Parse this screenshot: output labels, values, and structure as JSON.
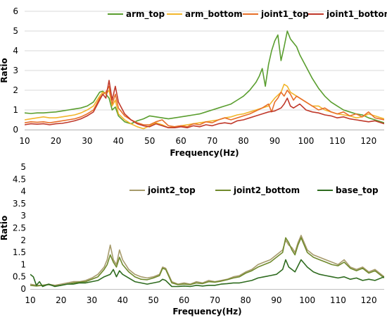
{
  "chart_data": [
    {
      "type": "line",
      "title": "",
      "xlabel": "Frequency(Hz)",
      "ylabel": "Ratio",
      "xlim": [
        10,
        125
      ],
      "ylim": [
        0,
        6
      ],
      "xticks": [
        10,
        20,
        30,
        40,
        50,
        60,
        70,
        80,
        90,
        100,
        110,
        120
      ],
      "yticks": [
        "0",
        "1",
        "2",
        "3",
        "4",
        "5",
        "6"
      ],
      "grid": "horizontal",
      "legend_position": "top",
      "series": [
        {
          "name": "arm_top",
          "color": "#5a9e2f",
          "x": [
            10,
            12,
            14,
            16,
            18,
            20,
            22,
            24,
            26,
            28,
            30,
            32,
            34,
            35,
            36,
            37,
            38,
            39,
            40,
            42,
            44,
            46,
            48,
            50,
            52,
            54,
            56,
            58,
            60,
            62,
            64,
            66,
            68,
            70,
            72,
            74,
            76,
            78,
            80,
            82,
            84,
            85,
            86,
            87,
            88,
            89,
            90,
            91,
            92,
            93,
            94,
            95,
            96,
            97,
            98,
            100,
            102,
            104,
            106,
            108,
            110,
            112,
            114,
            116,
            118,
            120,
            122,
            125
          ],
          "y": [
            0.85,
            0.82,
            0.85,
            0.85,
            0.88,
            0.9,
            0.95,
            1.0,
            1.05,
            1.1,
            1.2,
            1.4,
            1.9,
            1.95,
            1.8,
            1.6,
            1.0,
            1.15,
            0.7,
            0.4,
            0.3,
            0.45,
            0.55,
            0.7,
            0.65,
            0.6,
            0.55,
            0.6,
            0.65,
            0.7,
            0.75,
            0.8,
            0.9,
            1.0,
            1.1,
            1.2,
            1.3,
            1.5,
            1.7,
            2.0,
            2.4,
            2.7,
            3.1,
            2.2,
            3.3,
            4.0,
            4.5,
            4.8,
            3.5,
            4.2,
            5.0,
            4.6,
            4.4,
            4.2,
            3.8,
            3.2,
            2.6,
            2.1,
            1.7,
            1.4,
            1.2,
            1.0,
            0.9,
            0.8,
            0.75,
            0.6,
            0.5,
            0.35
          ]
        },
        {
          "name": "arm_bottom",
          "color": "#f2b62c",
          "x": [
            10,
            12,
            14,
            16,
            18,
            20,
            22,
            24,
            26,
            28,
            30,
            32,
            34,
            35,
            36,
            37,
            38,
            39,
            40,
            42,
            44,
            46,
            48,
            50,
            52,
            54,
            56,
            58,
            60,
            62,
            64,
            66,
            68,
            70,
            72,
            74,
            76,
            78,
            80,
            82,
            84,
            86,
            88,
            90,
            92,
            93,
            94,
            95,
            96,
            98,
            100,
            102,
            104,
            106,
            108,
            110,
            112,
            114,
            116,
            118,
            120,
            122,
            125
          ],
          "y": [
            0.5,
            0.55,
            0.6,
            0.65,
            0.6,
            0.6,
            0.65,
            0.7,
            0.75,
            0.85,
            1.0,
            1.2,
            1.7,
            1.9,
            1.8,
            2.0,
            1.2,
            1.5,
            0.8,
            0.5,
            0.3,
            0.15,
            0.05,
            0.2,
            0.35,
            0.25,
            0.1,
            0.15,
            0.2,
            0.25,
            0.3,
            0.35,
            0.4,
            0.45,
            0.5,
            0.6,
            0.65,
            0.75,
            0.8,
            0.9,
            1.0,
            1.1,
            1.2,
            1.6,
            1.9,
            2.3,
            2.2,
            1.9,
            1.8,
            1.6,
            1.4,
            1.2,
            1.2,
            1.0,
            0.9,
            0.8,
            0.75,
            0.7,
            0.6,
            0.65,
            0.8,
            0.7,
            0.55
          ]
        },
        {
          "name": "joint1_top",
          "color": "#e8702a",
          "x": [
            10,
            12,
            14,
            16,
            18,
            20,
            22,
            24,
            26,
            28,
            30,
            32,
            34,
            35,
            36,
            37,
            38,
            39,
            40,
            42,
            44,
            46,
            48,
            50,
            52,
            54,
            56,
            58,
            60,
            62,
            64,
            66,
            68,
            70,
            72,
            74,
            76,
            78,
            80,
            82,
            84,
            86,
            88,
            89,
            90,
            91,
            92,
            93,
            94,
            95,
            96,
            97,
            98,
            100,
            102,
            104,
            106,
            108,
            110,
            112,
            114,
            116,
            118,
            120,
            122,
            125
          ],
          "y": [
            0.35,
            0.4,
            0.38,
            0.4,
            0.35,
            0.4,
            0.45,
            0.5,
            0.55,
            0.65,
            0.8,
            1.0,
            1.6,
            1.8,
            1.9,
            2.2,
            1.3,
            1.8,
            1.1,
            0.7,
            0.5,
            0.35,
            0.25,
            0.25,
            0.4,
            0.5,
            0.2,
            0.15,
            0.2,
            0.15,
            0.3,
            0.25,
            0.4,
            0.35,
            0.5,
            0.6,
            0.5,
            0.6,
            0.7,
            0.8,
            0.95,
            1.1,
            1.3,
            0.9,
            1.4,
            1.6,
            1.9,
            1.7,
            2.0,
            1.8,
            1.5,
            1.7,
            1.6,
            1.4,
            1.2,
            1.0,
            1.1,
            0.9,
            0.8,
            0.9,
            0.7,
            0.8,
            0.65,
            0.9,
            0.6,
            0.5
          ]
        },
        {
          "name": "joint1_bottom",
          "color": "#c0392b",
          "x": [
            10,
            12,
            14,
            16,
            18,
            20,
            22,
            24,
            26,
            28,
            30,
            32,
            34,
            35,
            36,
            37,
            38,
            39,
            40,
            42,
            44,
            46,
            48,
            50,
            52,
            54,
            56,
            58,
            60,
            62,
            64,
            66,
            68,
            70,
            72,
            74,
            76,
            78,
            80,
            82,
            84,
            86,
            88,
            90,
            92,
            93,
            94,
            95,
            96,
            98,
            100,
            102,
            104,
            106,
            108,
            110,
            112,
            114,
            116,
            118,
            120,
            122,
            125
          ],
          "y": [
            0.25,
            0.3,
            0.28,
            0.3,
            0.25,
            0.3,
            0.32,
            0.38,
            0.45,
            0.55,
            0.7,
            0.9,
            1.5,
            1.8,
            1.6,
            2.5,
            1.5,
            2.2,
            1.4,
            0.8,
            0.5,
            0.3,
            0.2,
            0.15,
            0.3,
            0.2,
            0.1,
            0.1,
            0.15,
            0.1,
            0.2,
            0.15,
            0.25,
            0.2,
            0.3,
            0.35,
            0.3,
            0.45,
            0.5,
            0.6,
            0.7,
            0.8,
            0.9,
            0.95,
            1.1,
            1.3,
            1.6,
            1.2,
            1.1,
            1.3,
            1.0,
            0.9,
            0.85,
            0.75,
            0.7,
            0.6,
            0.65,
            0.55,
            0.5,
            0.45,
            0.4,
            0.45,
            0.3
          ]
        }
      ]
    },
    {
      "type": "line",
      "title": "",
      "xlabel": "Frequency(Hz)",
      "ylabel": "Ratio",
      "xlim": [
        10,
        125
      ],
      "ylim": [
        0,
        5
      ],
      "xticks": [
        10,
        20,
        30,
        40,
        50,
        60,
        70,
        80,
        90,
        100,
        110,
        120
      ],
      "yticks": [
        "0",
        "0.5",
        "1",
        "1.5",
        "2",
        "2.5",
        "3",
        "3.5",
        "4",
        "4.5",
        "5"
      ],
      "grid": "none",
      "legend_position": "upper-middle",
      "series": [
        {
          "name": "joint2_top",
          "color": "#a79b6c",
          "x": [
            10,
            12,
            14,
            16,
            18,
            20,
            22,
            24,
            26,
            28,
            30,
            32,
            34,
            35,
            36,
            37,
            38,
            39,
            40,
            42,
            44,
            46,
            48,
            50,
            52,
            53,
            54,
            56,
            58,
            60,
            62,
            64,
            66,
            68,
            70,
            72,
            74,
            76,
            78,
            80,
            82,
            84,
            86,
            88,
            90,
            92,
            93,
            94,
            95,
            96,
            97,
            98,
            100,
            102,
            104,
            106,
            108,
            110,
            112,
            114,
            116,
            118,
            120,
            122,
            125
          ],
          "y": [
            0.2,
            0.15,
            0.15,
            0.2,
            0.15,
            0.2,
            0.25,
            0.3,
            0.3,
            0.35,
            0.45,
            0.6,
            0.9,
            1.2,
            1.8,
            1.2,
            1.0,
            1.6,
            1.2,
            0.8,
            0.6,
            0.5,
            0.45,
            0.5,
            0.6,
            0.9,
            0.85,
            0.3,
            0.2,
            0.25,
            0.2,
            0.3,
            0.25,
            0.35,
            0.3,
            0.35,
            0.4,
            0.5,
            0.55,
            0.7,
            0.8,
            1.0,
            1.1,
            1.2,
            1.4,
            1.6,
            2.0,
            1.8,
            1.7,
            1.5,
            1.9,
            2.2,
            1.6,
            1.4,
            1.3,
            1.2,
            1.1,
            1.0,
            1.2,
            0.9,
            0.8,
            0.9,
            0.7,
            0.8,
            0.5
          ]
        },
        {
          "name": "joint2_bottom",
          "color": "#708a2d",
          "x": [
            10,
            12,
            14,
            16,
            18,
            20,
            22,
            24,
            26,
            28,
            30,
            32,
            34,
            35,
            36,
            37,
            38,
            39,
            40,
            42,
            44,
            46,
            48,
            50,
            52,
            53,
            54,
            56,
            58,
            60,
            62,
            64,
            66,
            68,
            70,
            72,
            74,
            76,
            78,
            80,
            82,
            84,
            86,
            88,
            90,
            92,
            93,
            94,
            95,
            96,
            97,
            98,
            100,
            102,
            104,
            106,
            108,
            110,
            112,
            114,
            116,
            118,
            120,
            122,
            125
          ],
          "y": [
            0.15,
            0.12,
            0.15,
            0.18,
            0.12,
            0.15,
            0.2,
            0.25,
            0.28,
            0.3,
            0.4,
            0.5,
            0.8,
            1.0,
            1.4,
            1.1,
            0.9,
            1.3,
            1.0,
            0.7,
            0.5,
            0.4,
            0.38,
            0.45,
            0.55,
            0.85,
            0.8,
            0.25,
            0.18,
            0.2,
            0.18,
            0.25,
            0.22,
            0.3,
            0.28,
            0.32,
            0.38,
            0.45,
            0.5,
            0.65,
            0.75,
            0.9,
            1.0,
            1.1,
            1.3,
            1.5,
            2.1,
            1.9,
            1.6,
            1.4,
            1.8,
            2.1,
            1.5,
            1.3,
            1.2,
            1.1,
            1.0,
            0.95,
            1.1,
            0.85,
            0.75,
            0.85,
            0.65,
            0.75,
            0.45
          ]
        },
        {
          "name": "base_top",
          "color": "#2e6b1f",
          "x": [
            10,
            11,
            12,
            13,
            14,
            16,
            18,
            20,
            22,
            24,
            26,
            28,
            30,
            32,
            34,
            35,
            36,
            37,
            38,
            39,
            40,
            42,
            44,
            46,
            48,
            50,
            52,
            53,
            54,
            56,
            58,
            60,
            62,
            64,
            66,
            68,
            70,
            72,
            74,
            76,
            78,
            80,
            82,
            84,
            86,
            88,
            90,
            92,
            93,
            94,
            95,
            96,
            98,
            100,
            102,
            104,
            106,
            108,
            110,
            112,
            114,
            116,
            118,
            120,
            122,
            125
          ],
          "y": [
            0.6,
            0.5,
            0.15,
            0.3,
            0.1,
            0.2,
            0.1,
            0.15,
            0.2,
            0.2,
            0.25,
            0.25,
            0.3,
            0.35,
            0.5,
            0.55,
            0.6,
            0.8,
            0.5,
            0.75,
            0.6,
            0.45,
            0.3,
            0.25,
            0.2,
            0.25,
            0.3,
            0.4,
            0.35,
            0.1,
            0.1,
            0.12,
            0.1,
            0.15,
            0.12,
            0.15,
            0.15,
            0.2,
            0.22,
            0.25,
            0.25,
            0.3,
            0.35,
            0.45,
            0.5,
            0.55,
            0.6,
            0.8,
            1.2,
            0.9,
            0.8,
            0.7,
            1.2,
            0.9,
            0.7,
            0.6,
            0.55,
            0.5,
            0.45,
            0.5,
            0.4,
            0.45,
            0.35,
            0.4,
            0.35,
            0.5
          ]
        }
      ]
    }
  ]
}
